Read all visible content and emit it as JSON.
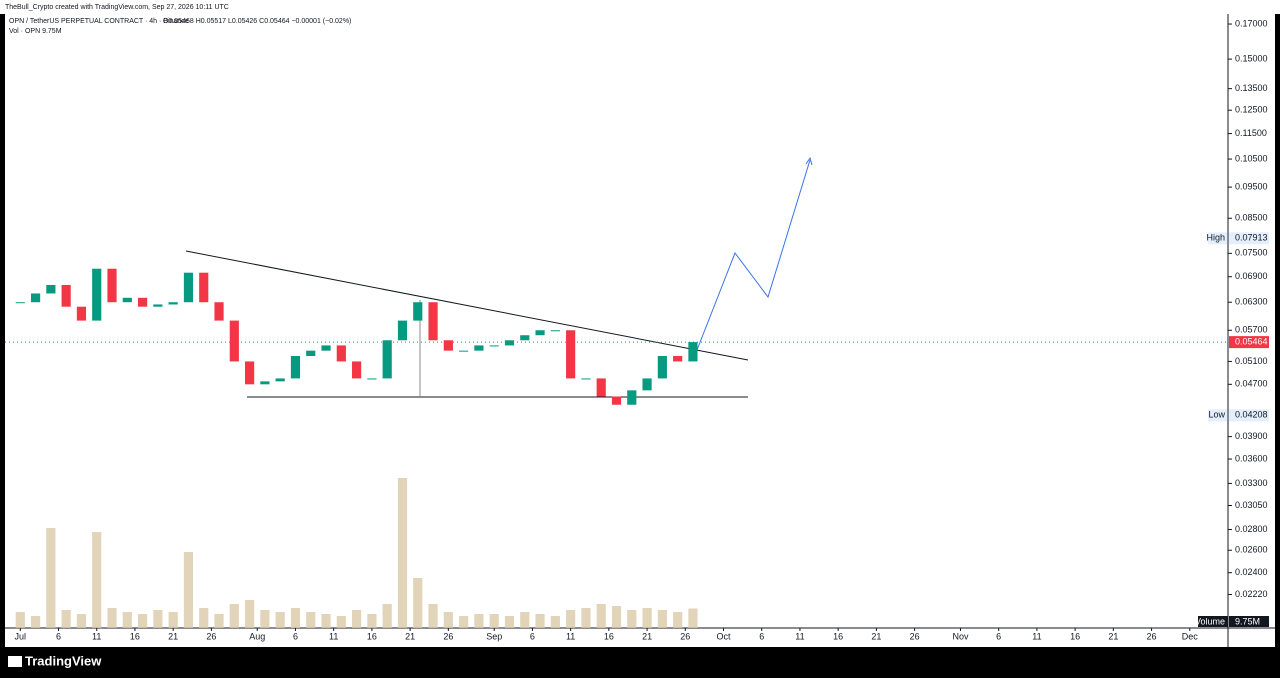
{
  "chart_data": {
    "type": "candlestick",
    "created_by": "TheBull_Crypto created with TradingView.com, Sep 27, 2026 10:11 UTC",
    "title": "OPN / TetherUS PERPETUAL CONTRACT · 4h · Binance",
    "ohlc_legend": "O0.05468 H0.05517 L0.05426 C0.05464 −0.00001 (−0.02%)",
    "volume_legend": "Vol · OPN 9.75M",
    "volume_label": "Volume",
    "volume_value_label": "9.75M",
    "high_label": "High",
    "high": 0.07913,
    "low_label": "Low",
    "low": 0.04208,
    "last": 0.05464,
    "brand": "TradingView",
    "log_scale": true,
    "up_color": "#089981",
    "down_color": "#f23645",
    "x": [
      "2026-07-01",
      "2026-07-03",
      "2026-07-05",
      "2026-07-07",
      "2026-07-09",
      "2026-07-11",
      "2026-07-13",
      "2026-07-15",
      "2026-07-17",
      "2026-07-19",
      "2026-07-21",
      "2026-07-23",
      "2026-07-25",
      "2026-07-27",
      "2026-07-29",
      "2026-07-31",
      "2026-08-02",
      "2026-08-04",
      "2026-08-06",
      "2026-08-08",
      "2026-08-10",
      "2026-08-12",
      "2026-08-14",
      "2026-08-16",
      "2026-08-18",
      "2026-08-20",
      "2026-08-22",
      "2026-08-24",
      "2026-08-26",
      "2026-08-28",
      "2026-08-30",
      "2026-09-01",
      "2026-09-03",
      "2026-09-05",
      "2026-09-07",
      "2026-09-09",
      "2026-09-11",
      "2026-09-13",
      "2026-09-15",
      "2026-09-17",
      "2026-09-19",
      "2026-09-21",
      "2026-09-23",
      "2026-09-25",
      "2026-09-27"
    ],
    "series": [
      {
        "name": "OPN",
        "values": [
          0.063,
          0.065,
          0.067,
          0.062,
          0.059,
          0.071,
          0.063,
          0.064,
          0.062,
          0.0625,
          0.063,
          0.07,
          0.063,
          0.059,
          0.051,
          0.047,
          0.0475,
          0.048,
          0.052,
          0.053,
          0.054,
          0.051,
          0.048,
          0.048,
          0.055,
          0.059,
          0.063,
          0.055,
          0.053,
          0.053,
          0.054,
          0.054,
          0.055,
          0.056,
          0.057,
          0.057,
          0.048,
          0.048,
          0.045,
          0.0437,
          0.046,
          0.048,
          0.052,
          0.051,
          0.05464
        ]
      },
      {
        "name": "Volume",
        "color": "#d9c9a8",
        "values": [
          8,
          6,
          50,
          9,
          7,
          48,
          10,
          8,
          7,
          9,
          8,
          38,
          10,
          7,
          12,
          14,
          9,
          8,
          10,
          8,
          7,
          6,
          9,
          7,
          12,
          75,
          25,
          12,
          8,
          6,
          7,
          7,
          6,
          8,
          7,
          6,
          9,
          10,
          12,
          11,
          9,
          10,
          9,
          8,
          9.75
        ]
      }
    ],
    "ylim": [
      0.0197,
      0.1762
    ],
    "vlim": [
      0,
      80
    ],
    "xlim": [
      "2026-06-29",
      "2026-12-06"
    ],
    "yticks": [
      {
        "value": 0.17,
        "label": "0.17000"
      },
      {
        "value": 0.15,
        "label": "0.15000"
      },
      {
        "value": 0.135,
        "label": "0.13500"
      },
      {
        "value": 0.125,
        "label": "0.12500"
      },
      {
        "value": 0.115,
        "label": "0.11500"
      },
      {
        "value": 0.105,
        "label": "0.10500"
      },
      {
        "value": 0.095,
        "label": "0.09500"
      },
      {
        "value": 0.085,
        "label": "0.08500"
      },
      {
        "value": 0.075,
        "label": "0.07500"
      },
      {
        "value": 0.069,
        "label": "0.06900"
      },
      {
        "value": 0.063,
        "label": "0.06300"
      },
      {
        "value": 0.057,
        "label": "0.05700"
      },
      {
        "value": 0.051,
        "label": "0.05100"
      },
      {
        "value": 0.047,
        "label": "0.04700"
      },
      {
        "value": 0.039,
        "label": "0.03900"
      },
      {
        "value": 0.036,
        "label": "0.03600"
      },
      {
        "value": 0.033,
        "label": "0.03300"
      },
      {
        "value": 0.0305,
        "label": "0.03050"
      },
      {
        "value": 0.028,
        "label": "0.02800"
      },
      {
        "value": 0.026,
        "label": "0.02600"
      },
      {
        "value": 0.024,
        "label": "0.02400"
      },
      {
        "value": 0.0222,
        "label": "0.02220"
      }
    ],
    "xticks": [
      {
        "value": "2026-07-01",
        "label": "Jul"
      },
      {
        "value": "2026-07-06",
        "label": "6"
      },
      {
        "value": "2026-07-11",
        "label": "11"
      },
      {
        "value": "2026-07-16",
        "label": "16"
      },
      {
        "value": "2026-07-21",
        "label": "21"
      },
      {
        "value": "2026-07-26",
        "label": "26"
      },
      {
        "value": "2026-08-01",
        "label": "Aug"
      },
      {
        "value": "2026-08-06",
        "label": "6"
      },
      {
        "value": "2026-08-11",
        "label": "11"
      },
      {
        "value": "2026-08-16",
        "label": "16"
      },
      {
        "value": "2026-08-21",
        "label": "21"
      },
      {
        "value": "2026-08-26",
        "label": "26"
      },
      {
        "value": "2026-09-01",
        "label": "Sep"
      },
      {
        "value": "2026-09-06",
        "label": "6"
      },
      {
        "value": "2026-09-11",
        "label": "11"
      },
      {
        "value": "2026-09-16",
        "label": "16"
      },
      {
        "value": "2026-09-21",
        "label": "21"
      },
      {
        "value": "2026-09-26",
        "label": "26"
      },
      {
        "value": "2026-10-01",
        "label": "Oct"
      },
      {
        "value": "2026-10-06",
        "label": "6"
      },
      {
        "value": "2026-10-11",
        "label": "11"
      },
      {
        "value": "2026-10-16",
        "label": "16"
      },
      {
        "value": "2026-10-21",
        "label": "21"
      },
      {
        "value": "2026-10-26",
        "label": "26"
      },
      {
        "value": "2026-11-01",
        "label": "Nov"
      },
      {
        "value": "2026-11-06",
        "label": "6"
      },
      {
        "value": "2026-11-11",
        "label": "11"
      },
      {
        "value": "2026-11-16",
        "label": "16"
      },
      {
        "value": "2026-11-21",
        "label": "21"
      },
      {
        "value": "2026-11-26",
        "label": "26"
      },
      {
        "value": "2026-12-01",
        "label": "Dec"
      }
    ]
  }
}
